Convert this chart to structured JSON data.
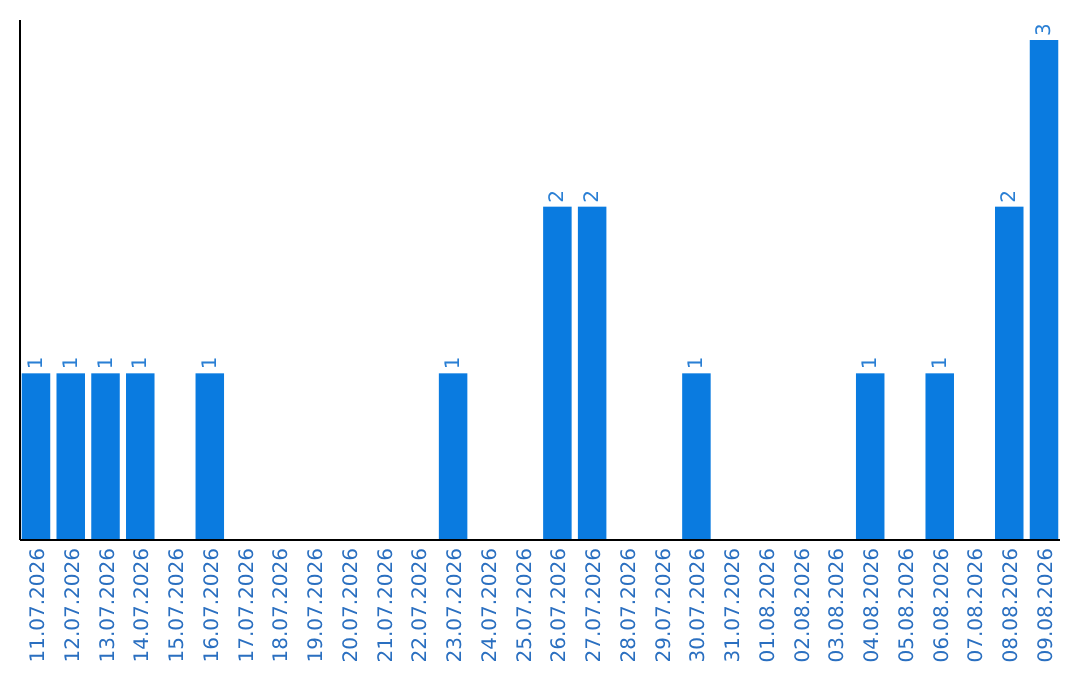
{
  "chart_data": {
    "type": "bar",
    "categories": [
      "11.07.2026",
      "12.07.2026",
      "13.07.2026",
      "14.07.2026",
      "15.07.2026",
      "16.07.2026",
      "17.07.2026",
      "18.07.2026",
      "19.07.2026",
      "20.07.2026",
      "21.07.2026",
      "22.07.2026",
      "23.07.2026",
      "24.07.2026",
      "25.07.2026",
      "26.07.2026",
      "27.07.2026",
      "28.07.2026",
      "29.07.2026",
      "30.07.2026",
      "31.07.2026",
      "01.08.2026",
      "02.08.2026",
      "03.08.2026",
      "04.08.2026",
      "05.08.2026",
      "06.08.2026",
      "07.08.2026",
      "08.08.2026",
      "09.08.2026"
    ],
    "values": [
      1,
      1,
      1,
      1,
      0,
      1,
      0,
      0,
      0,
      0,
      0,
      0,
      1,
      0,
      0,
      2,
      2,
      0,
      0,
      1,
      0,
      0,
      0,
      0,
      1,
      0,
      1,
      0,
      2,
      3
    ],
    "value_labels": [
      "1",
      "1",
      "1",
      "1",
      null,
      "1",
      null,
      null,
      null,
      null,
      null,
      null,
      "1",
      null,
      null,
      "2",
      "2",
      null,
      null,
      "1",
      null,
      null,
      null,
      null,
      "1",
      null,
      "1",
      null,
      "2",
      "3"
    ],
    "color": "#0a7be0"
  }
}
